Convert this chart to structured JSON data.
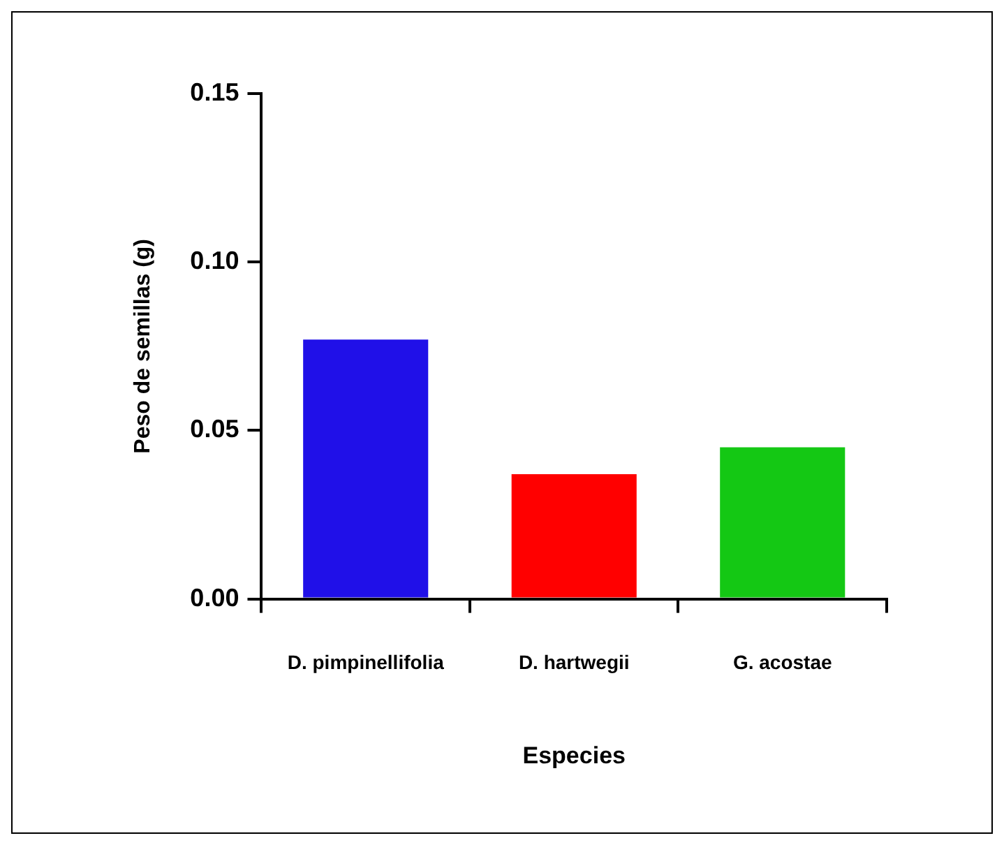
{
  "chart_data": {
    "type": "bar",
    "xlabel": "Especies",
    "ylabel": "Peso de semillas (g)",
    "categories": [
      "D. pimpinellifolia",
      "D. hartwegii",
      "G. acostae"
    ],
    "values": [
      0.077,
      0.037,
      0.045
    ],
    "colors": [
      "#2010e8",
      "#ff0000",
      "#14c814"
    ],
    "ylim": [
      0,
      0.15
    ],
    "yticks": [
      {
        "value": 0,
        "label": "0.00"
      },
      {
        "value": 0.05,
        "label": "0.05"
      },
      {
        "value": 0.1,
        "label": "0.10"
      },
      {
        "value": 0.15,
        "label": "0.15"
      }
    ],
    "grid": false,
    "legend": false
  }
}
